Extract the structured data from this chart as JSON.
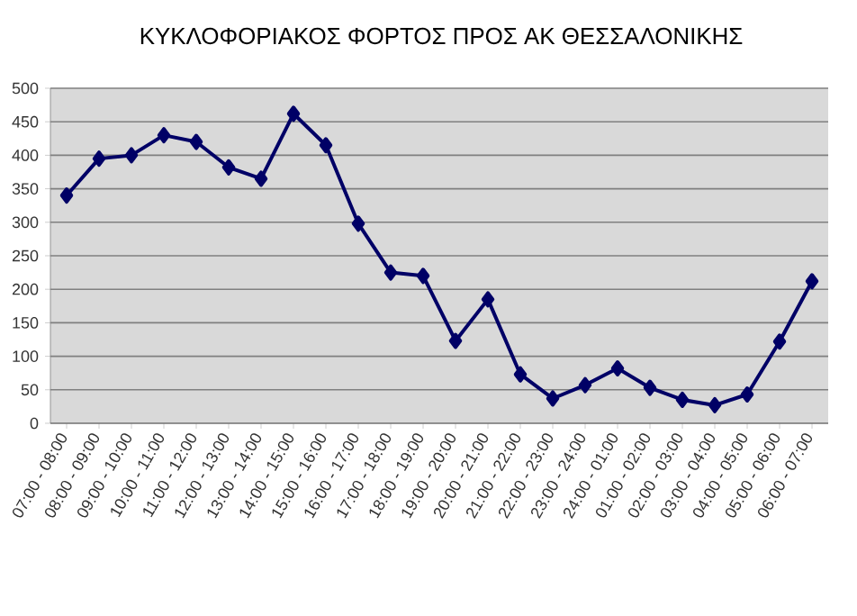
{
  "chart_data": {
    "type": "line",
    "title": "ΚΥΚΛΟΦΟΡΙΑΚΟΣ ΦΟΡΤΟΣ ΠΡΟΣ ΑΚ ΘΕΣΣΑΛΟΝΙΚΗΣ",
    "categories": [
      "07:00 - 08:00",
      "08:00 - 09:00",
      "09:00 - 10:00",
      "10:00 - 11:00",
      "11:00 - 12:00",
      "12:00 - 13:00",
      "13:00 - 14:00",
      "14:00 - 15:00",
      "15:00 - 16:00",
      "16:00 - 17:00",
      "17:00 - 18:00",
      "18:00 - 19:00",
      "19:00 - 20:00",
      "20:00 - 21:00",
      "21:00 - 22:00",
      "22:00 - 23:00",
      "23:00 - 24:00",
      "24:00 - 01:00",
      "01:00 - 02:00",
      "02:00 - 03:00",
      "03:00 - 04:00",
      "04:00 - 05:00",
      "05:00 - 06:00",
      "06:00 - 07:00"
    ],
    "series": [
      {
        "color": "#000066",
        "values": [
          340,
          395,
          400,
          430,
          420,
          382,
          365,
          462,
          415,
          298,
          225,
          220,
          123,
          185,
          73,
          37,
          57,
          82,
          53,
          35,
          27,
          43,
          122,
          212
        ]
      }
    ],
    "ylim": [
      0,
      500
    ],
    "yticks": [
      0,
      50,
      100,
      150,
      200,
      250,
      300,
      350,
      400,
      450,
      500
    ],
    "grid": "y",
    "marker": "diamond",
    "line_style": "solid"
  }
}
